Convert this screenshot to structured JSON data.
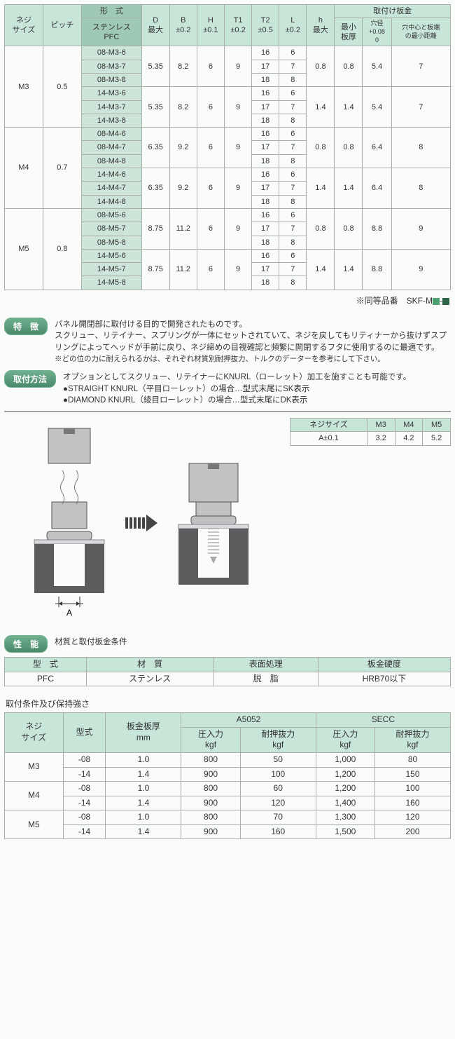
{
  "mainTable": {
    "headers": {
      "screw": "ネジ\nサイズ",
      "pitch": "ピッチ",
      "model_top": "形　式",
      "model_sub": "ステンレス\nPFC",
      "D": "D\n最大",
      "B": "B\n±0.2",
      "H": "H\n±0.1",
      "T1": "T1\n±0.2",
      "T2": "T2\n±0.5",
      "L": "L\n±0.2",
      "h": "h\n最大",
      "mount_top": "取付け板金",
      "min_t": "最小\n板厚",
      "hole": "穴径\n+0.08\n0",
      "dist": "穴中心と板端\nの最小距離"
    },
    "groups": [
      {
        "screw": "M3",
        "pitch": "0.5",
        "subgroups": [
          {
            "vals": {
              "D": "5.35",
              "B": "8.2",
              "H": "6",
              "T1": "9",
              "h": "0.8",
              "min_t": "0.8",
              "hole": "5.4",
              "dist": "7"
            },
            "rows": [
              [
                "08-M3-6",
                "16",
                "6"
              ],
              [
                "08-M3-7",
                "17",
                "7"
              ],
              [
                "08-M3-8",
                "18",
                "8"
              ]
            ]
          },
          {
            "vals": {
              "D": "5.35",
              "B": "8.2",
              "H": "6",
              "T1": "9",
              "h": "1.4",
              "min_t": "1.4",
              "hole": "5.4",
              "dist": "7"
            },
            "rows": [
              [
                "14-M3-6",
                "16",
                "6"
              ],
              [
                "14-M3-7",
                "17",
                "7"
              ],
              [
                "14-M3-8",
                "18",
                "8"
              ]
            ]
          }
        ]
      },
      {
        "screw": "M4",
        "pitch": "0.7",
        "subgroups": [
          {
            "vals": {
              "D": "6.35",
              "B": "9.2",
              "H": "6",
              "T1": "9",
              "h": "0.8",
              "min_t": "0.8",
              "hole": "6.4",
              "dist": "8"
            },
            "rows": [
              [
                "08-M4-6",
                "16",
                "6"
              ],
              [
                "08-M4-7",
                "17",
                "7"
              ],
              [
                "08-M4-8",
                "18",
                "8"
              ]
            ]
          },
          {
            "vals": {
              "D": "6.35",
              "B": "9.2",
              "H": "6",
              "T1": "9",
              "h": "1.4",
              "min_t": "1.4",
              "hole": "6.4",
              "dist": "8"
            },
            "rows": [
              [
                "14-M4-6",
                "16",
                "6"
              ],
              [
                "14-M4-7",
                "17",
                "7"
              ],
              [
                "14-M4-8",
                "18",
                "8"
              ]
            ]
          }
        ]
      },
      {
        "screw": "M5",
        "pitch": "0.8",
        "subgroups": [
          {
            "vals": {
              "D": "8.75",
              "B": "11.2",
              "H": "6",
              "T1": "9",
              "h": "0.8",
              "min_t": "0.8",
              "hole": "8.8",
              "dist": "9"
            },
            "rows": [
              [
                "08-M5-6",
                "16",
                "6"
              ],
              [
                "08-M5-7",
                "17",
                "7"
              ],
              [
                "08-M5-8",
                "18",
                "8"
              ]
            ]
          },
          {
            "vals": {
              "D": "8.75",
              "B": "11.2",
              "H": "6",
              "T1": "9",
              "h": "1.4",
              "min_t": "1.4",
              "hole": "8.8",
              "dist": "9"
            },
            "rows": [
              [
                "14-M5-6",
                "16",
                "6"
              ],
              [
                "14-M5-7",
                "17",
                "7"
              ],
              [
                "14-M5-8",
                "18",
                "8"
              ]
            ]
          }
        ]
      }
    ]
  },
  "equivNote": {
    "prefix": "※同等品番　SKF-M",
    "dash": "-"
  },
  "features": {
    "label": "特　徴",
    "text": "パネル開閉部に取付ける目的で開発されたものです。\nスクリュー、リテイナー、スプリングが一体にセットされていて、ネジを戻してもリティナーから抜けずスプリングによってヘッドが手前に戻り、ネジ締めの目視確認と頻繁に開閉するフタに使用するのに最適です。",
    "note": "※どの位の力に耐えられるかは、それぞれ材質別耐押抜力、トルクのデーターを参考にして下さい。"
  },
  "mounting": {
    "label": "取付方法",
    "text": "オプションとしてスクリュー、リテイナーにKNURL（ローレット）加工を施すことも可能です。",
    "b1": "●STRAIGHT KNURL（平目ローレット）の場合…型式末尾にSK表示",
    "b2": "●DIAMOND KNURL（綾目ローレット）の場合…型式末尾にDK表示"
  },
  "sizeTable": {
    "headers": [
      "ネジサイズ",
      "M3",
      "M4",
      "M5"
    ],
    "row": [
      "A±0.1",
      "3.2",
      "4.2",
      "5.2"
    ]
  },
  "aLabel": "A",
  "performance": {
    "label": "性　能",
    "sub": "材質と取付板金条件",
    "headers": [
      "型　式",
      "材　質",
      "表面処理",
      "板金硬度"
    ],
    "row": [
      "PFC",
      "ステンレス",
      "脱　脂",
      "HRB70以下"
    ]
  },
  "strength": {
    "title": "取付条件及び保持強さ",
    "headers": {
      "screw": "ネジ\nサイズ",
      "model": "型式",
      "thick": "板金板厚\nmm",
      "a5052": "A5052",
      "secc": "SECC",
      "press": "圧入力\nkgf",
      "push": "耐押抜力\nkgf"
    },
    "groups": [
      {
        "screw": "M3",
        "rows": [
          [
            "-08",
            "1.0",
            "800",
            "50",
            "1,000",
            "80"
          ],
          [
            "-14",
            "1.4",
            "900",
            "100",
            "1,200",
            "150"
          ]
        ]
      },
      {
        "screw": "M4",
        "rows": [
          [
            "-08",
            "1.0",
            "800",
            "60",
            "1,200",
            "100"
          ],
          [
            "-14",
            "1.4",
            "900",
            "120",
            "1,400",
            "160"
          ]
        ]
      },
      {
        "screw": "M5",
        "rows": [
          [
            "-08",
            "1.0",
            "800",
            "70",
            "1,300",
            "120"
          ],
          [
            "-14",
            "1.4",
            "900",
            "160",
            "1,500",
            "200"
          ]
        ]
      }
    ]
  },
  "colors": {
    "headerBg": "#c8e6d8",
    "modelBg": "#cde4d9",
    "border": "#a8b0a8",
    "pill1": "#6fb08f",
    "pill2": "#4a8a6b"
  }
}
